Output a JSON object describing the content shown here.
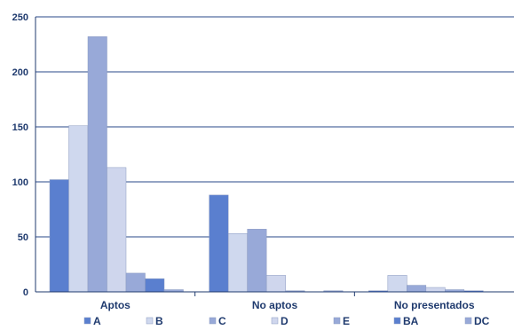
{
  "chart_data": {
    "type": "bar",
    "categories": [
      "Aptos",
      "No aptos",
      "No presentados"
    ],
    "series": [
      {
        "name": "A",
        "values": [
          102,
          88,
          1
        ]
      },
      {
        "name": "B",
        "values": [
          151,
          53,
          15
        ]
      },
      {
        "name": "C",
        "values": [
          232,
          57,
          6
        ]
      },
      {
        "name": "D",
        "values": [
          113,
          15,
          4
        ]
      },
      {
        "name": "E",
        "values": [
          17,
          1,
          2
        ]
      },
      {
        "name": "BA",
        "values": [
          12,
          0,
          1
        ]
      },
      {
        "name": "DC",
        "values": [
          2,
          1,
          0
        ]
      }
    ],
    "ylim": [
      0,
      250
    ],
    "yticks": [
      0,
      50,
      100,
      150,
      200,
      250
    ],
    "grid": true,
    "legend_position": "bottom",
    "colors": {
      "A": "#5a7fcf",
      "B": "#cfd8ee",
      "C": "#98a9d8",
      "D": "#cfd6ed",
      "E": "#98a9d8",
      "BA": "#5a7fcf",
      "DC": "#98a9d8",
      "axis": "#1f3a6e",
      "grid": "#2a4a8a",
      "bar_edge": "#8a9ac0"
    }
  }
}
